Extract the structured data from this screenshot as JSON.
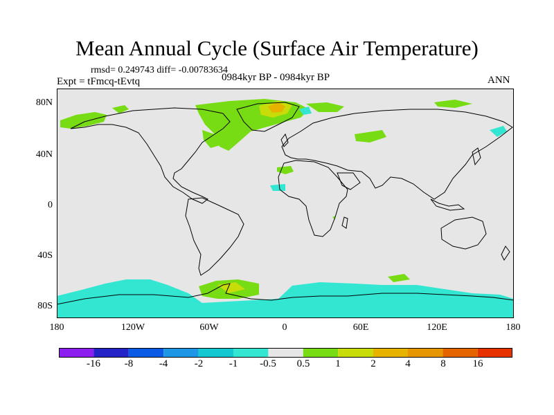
{
  "figure": {
    "title": "Mean Annual Cycle (Surface Air Temperature)",
    "stats": "rmsd= 0.249743 diff= -0.00783634",
    "experiment": "Expt = tFmcq-tEvtq",
    "period": "0984kyr BP - 0984kyr BP",
    "season": "ANN"
  },
  "map": {
    "background_color": "#e6e6e6",
    "coastline_color": "#000000",
    "y_axis_labels": [
      "80N",
      "40N",
      "0",
      "40S",
      "80S"
    ],
    "x_axis_labels": [
      "180",
      "120W",
      "60W",
      "0",
      "60E",
      "120E",
      "180"
    ]
  },
  "colorbar": {
    "colors": [
      "#8c1ef0",
      "#2323c8",
      "#0a5ae6",
      "#1e96e6",
      "#14c8d2",
      "#32e6d2",
      "#e6e6e6",
      "#78dc14",
      "#c8dc0a",
      "#e6b400",
      "#e69600",
      "#e66400",
      "#e63200"
    ],
    "labels": [
      "-16",
      "-8",
      "-4",
      "-2",
      "-1",
      "-0.5",
      "0.5",
      "1",
      "2",
      "4",
      "8",
      "16"
    ]
  }
}
